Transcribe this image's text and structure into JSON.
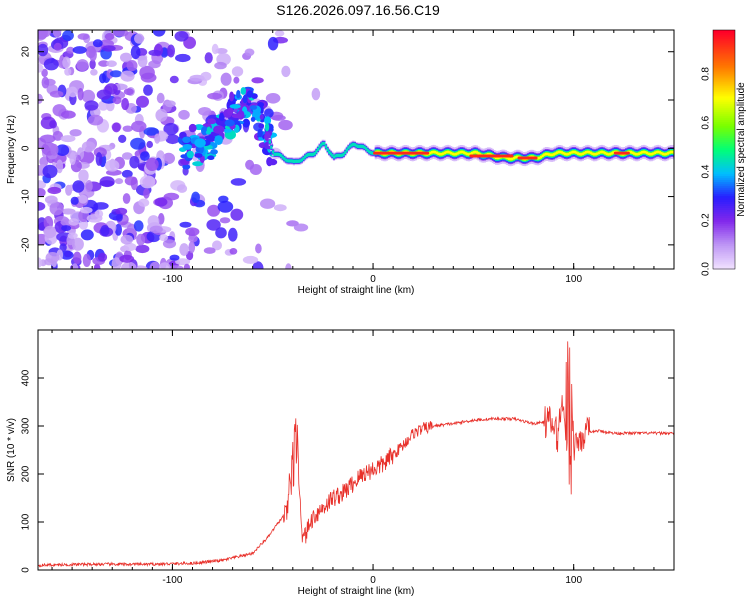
{
  "title": "S126.2026.097.16.56.C19",
  "chart_data": [
    {
      "type": "heatmap",
      "title": "S126.2026.097.16.56.C19",
      "xlabel": "Height of straight line (km)",
      "ylabel": "Frequency (Hz)",
      "xlim": [
        -167,
        150
      ],
      "ylim": [
        -25,
        24.5
      ],
      "xticks": [
        "-100",
        "0",
        "100"
      ],
      "yticks": [
        "-20",
        "-10",
        "0",
        "10",
        "20"
      ],
      "ridge": {
        "description_x": [
          -92,
          -80,
          -70,
          -62,
          -55,
          -50,
          -45,
          -40,
          -35,
          -30,
          -25,
          -20,
          -15,
          -10,
          -5,
          0,
          10,
          20,
          30,
          50,
          65,
          80,
          90,
          100,
          110,
          120,
          135,
          150
        ],
        "freq_y": [
          0,
          2,
          7,
          9,
          5,
          -1,
          -2,
          -3,
          -2,
          -1,
          1,
          -2,
          -1,
          1,
          0,
          -1,
          -1,
          -1,
          -1,
          -1,
          -2,
          -2,
          -1,
          -1,
          -1,
          -1,
          -1,
          -1
        ]
      },
      "colorbar": {
        "label": "Normalized spectral amplitude",
        "range": [
          0,
          1
        ],
        "ticks": [
          "0.0",
          "0.2",
          "0.4",
          "0.6",
          "0.8"
        ]
      }
    },
    {
      "type": "line",
      "xlabel": "Height of straight line (km)",
      "ylabel": "SNR (10 * v/v)",
      "xlim": [
        -167,
        150
      ],
      "ylim": [
        0,
        500
      ],
      "xticks": [
        "-100",
        "0",
        "100"
      ],
      "yticks": [
        "0",
        "100",
        "200",
        "300",
        "400"
      ],
      "series": [
        {
          "name": "SNR",
          "color": "#e8302a",
          "x": [
            -167,
            -140,
            -110,
            -90,
            -75,
            -60,
            -52,
            -47,
            -43,
            -40,
            -38,
            -35,
            -30,
            -25,
            -20,
            -15,
            -10,
            -5,
            0,
            5,
            10,
            15,
            20,
            25,
            30,
            40,
            50,
            60,
            70,
            80,
            88,
            92,
            95,
            97,
            98,
            100,
            103,
            107,
            112,
            120,
            130,
            140,
            150
          ],
          "y": [
            10,
            12,
            12,
            14,
            20,
            35,
            70,
            100,
            120,
            190,
            260,
            60,
            110,
            130,
            150,
            160,
            180,
            200,
            210,
            220,
            240,
            260,
            285,
            295,
            300,
            305,
            312,
            315,
            315,
            305,
            310,
            280,
            370,
            200,
            480,
            260,
            275,
            285,
            290,
            285,
            285,
            285,
            285
          ]
        }
      ]
    }
  ]
}
